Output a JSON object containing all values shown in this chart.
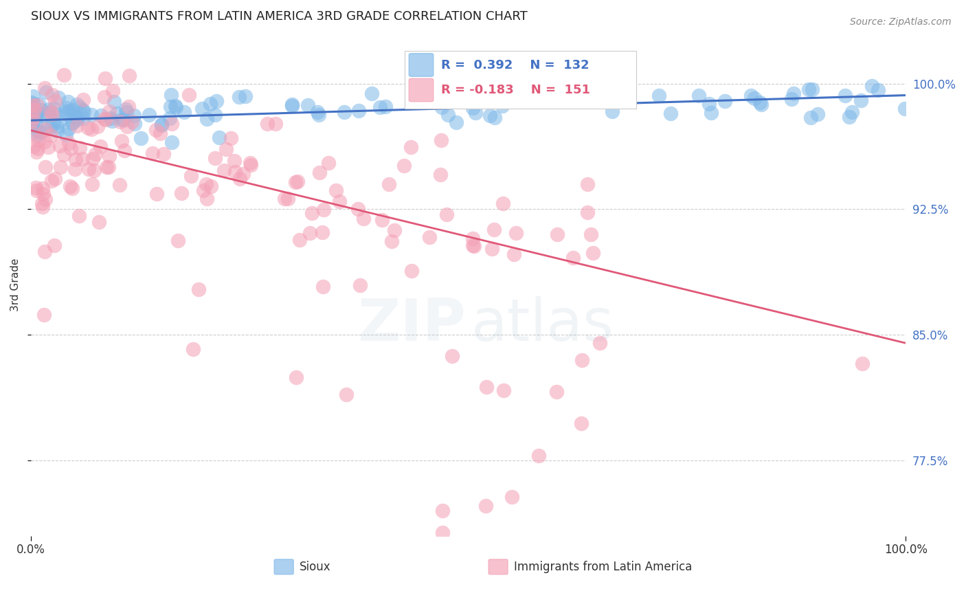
{
  "title": "SIOUX VS IMMIGRANTS FROM LATIN AMERICA 3RD GRADE CORRELATION CHART",
  "source_text": "Source: ZipAtlas.com",
  "ylabel": "3rd Grade",
  "xlim": [
    0.0,
    1.0
  ],
  "ylim": [
    0.73,
    1.03
  ],
  "yticks": [
    0.775,
    0.85,
    0.925,
    1.0
  ],
  "ytick_labels": [
    "77.5%",
    "85.0%",
    "92.5%",
    "100.0%"
  ],
  "blue_label": "Sioux",
  "pink_label": "Immigrants from Latin America",
  "blue_R": 0.392,
  "blue_N": 132,
  "pink_R": -0.183,
  "pink_N": 151,
  "blue_color": "#7fb8e8",
  "pink_color": "#f4a0b5",
  "blue_line_color": "#4472c4",
  "pink_line_color": "#e05878",
  "background_color": "#ffffff",
  "title_fontsize": 13,
  "source_fontsize": 10,
  "ylabel_fontsize": 11,
  "blue_trend": [
    0.978,
    0.993
  ],
  "pink_trend": [
    0.972,
    0.845
  ]
}
